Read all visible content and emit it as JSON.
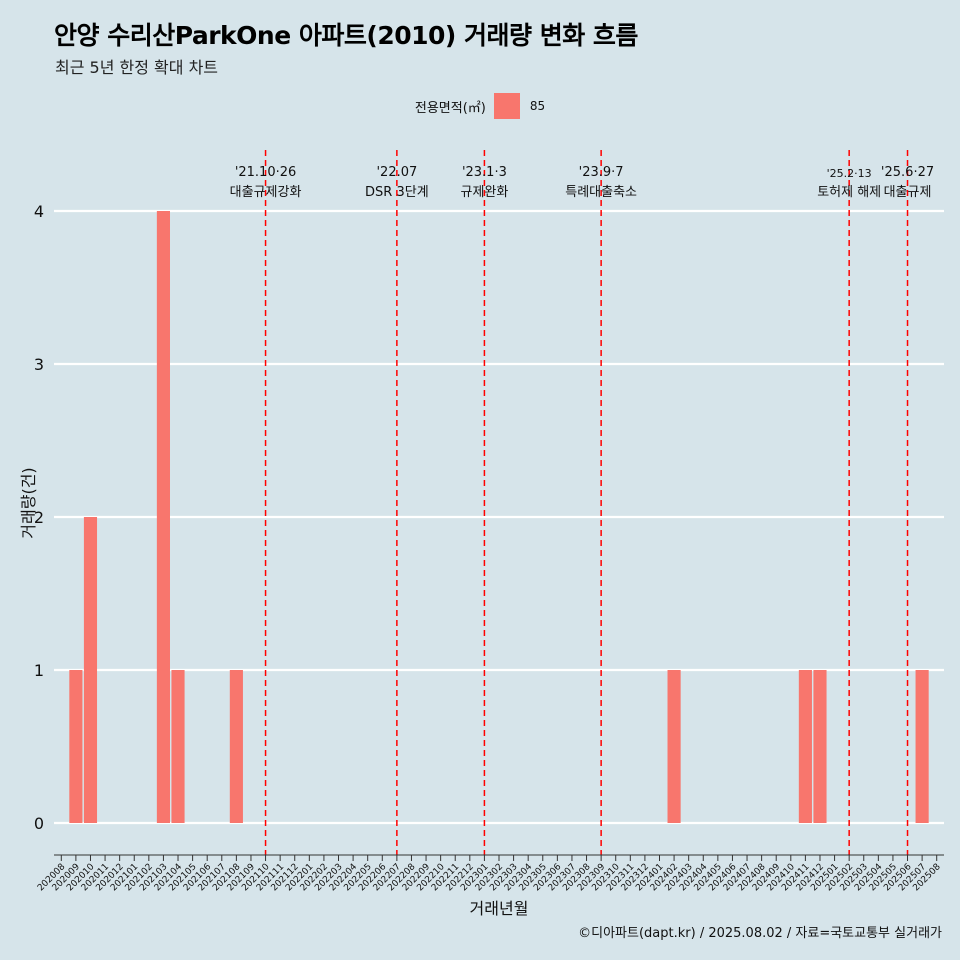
{
  "header": {
    "title": "안양 수리산ParkOne 아파트(2010) 거래량 변화 흐름",
    "subtitle": "최근 5년 한정 확대 차트"
  },
  "legend": {
    "title": "전용면적(㎡)",
    "items": [
      {
        "label": "85",
        "color": "#f8766d"
      }
    ]
  },
  "caption": "©디아파트(dapt.kr) / 2025.08.02 / 자료=국토교통부 실거래가",
  "chart_data": {
    "type": "bar",
    "xlabel": "거래년월",
    "ylabel": "거래량(건)",
    "ylim": [
      0,
      4
    ],
    "yticks": [
      0,
      1,
      2,
      3,
      4
    ],
    "grid": true,
    "legend_position": "top",
    "categories": [
      "202008",
      "202009",
      "202010",
      "202011",
      "202012",
      "202101",
      "202102",
      "202103",
      "202104",
      "202105",
      "202106",
      "202107",
      "202108",
      "202109",
      "202110",
      "202111",
      "202112",
      "202201",
      "202202",
      "202203",
      "202204",
      "202205",
      "202206",
      "202207",
      "202208",
      "202209",
      "202210",
      "202211",
      "202212",
      "202301",
      "202302",
      "202303",
      "202304",
      "202305",
      "202306",
      "202307",
      "202308",
      "202309",
      "202310",
      "202311",
      "202312",
      "202401",
      "202402",
      "202403",
      "202404",
      "202405",
      "202406",
      "202407",
      "202408",
      "202409",
      "202410",
      "202411",
      "202412",
      "202501",
      "202502",
      "202503",
      "202504",
      "202505",
      "202506",
      "202507",
      "202508"
    ],
    "series": [
      {
        "name": "85",
        "color": "#f8766d",
        "values": [
          0,
          1,
          2,
          0,
          0,
          0,
          0,
          4,
          1,
          0,
          0,
          0,
          1,
          0,
          0,
          0,
          0,
          0,
          0,
          0,
          0,
          0,
          0,
          0,
          0,
          0,
          0,
          0,
          0,
          0,
          0,
          0,
          0,
          0,
          0,
          0,
          0,
          0,
          0,
          0,
          0,
          0,
          1,
          0,
          0,
          0,
          0,
          0,
          0,
          0,
          0,
          1,
          1,
          0,
          0,
          0,
          0,
          0,
          0,
          1,
          0
        ]
      }
    ],
    "annotations": [
      {
        "x": "202110",
        "date": "'21.10·26",
        "label": "대출규제강화"
      },
      {
        "x": "202207",
        "date": "'22.07",
        "label": "DSR 3단계"
      },
      {
        "x": "202301",
        "date": "'23.1·3",
        "label": "규제완화"
      },
      {
        "x": "202309",
        "date": "'23.9·7",
        "label": "특례대출축소"
      },
      {
        "x": "202502",
        "date": "'25.2·13",
        "label": "토허제 해제"
      },
      {
        "x": "202506",
        "date": "'25.6·27",
        "label": "대출규제"
      }
    ]
  }
}
